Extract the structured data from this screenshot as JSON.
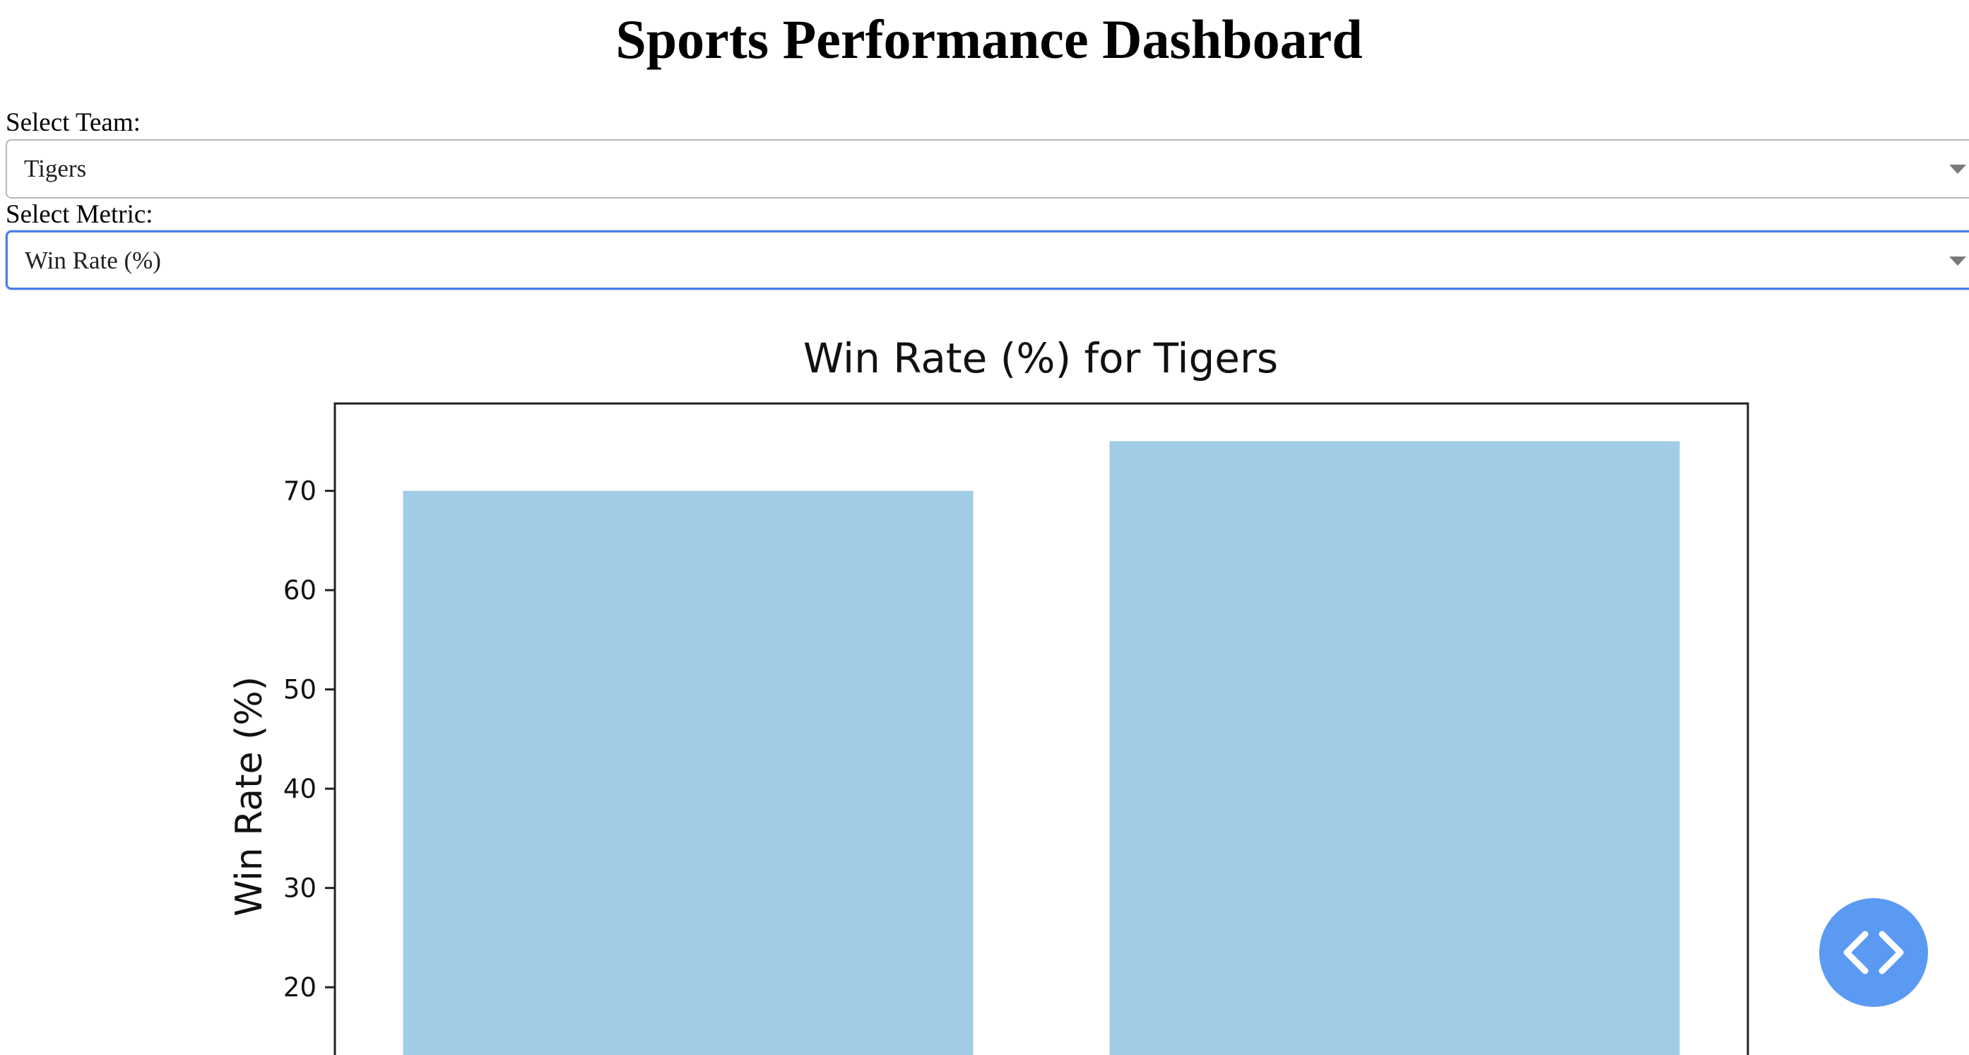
{
  "page": {
    "title": "Sports Performance Dashboard"
  },
  "team_select": {
    "label": "Select Team:",
    "value": "Tigers"
  },
  "metric_select": {
    "label": "Select Metric:",
    "value": "Win Rate (%)"
  },
  "fab": {
    "icon": "code-icon",
    "color": "#5b9af2"
  },
  "chart_data": {
    "type": "bar",
    "title": "Win Rate (%) for Tigers",
    "ylabel": "Win Rate (%)",
    "xlabel": "",
    "values": [
      70,
      75
    ],
    "bar_color": "#a0cce6",
    "yticks": [
      20,
      30,
      40,
      50,
      60,
      70
    ],
    "ylim": [
      0,
      78.8
    ],
    "visible_ymin": 13.5,
    "grid": false
  }
}
